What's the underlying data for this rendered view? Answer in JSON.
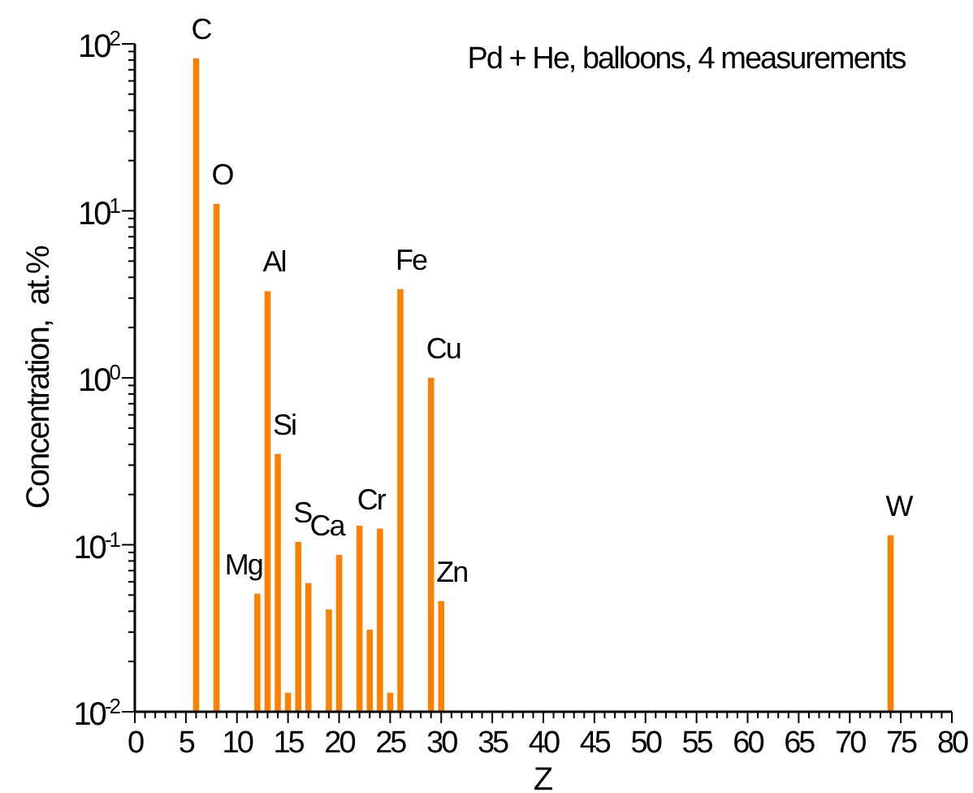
{
  "chart_data": {
    "type": "bar",
    "title": "Pd + He, balloons, 4 measurements",
    "xlabel": "Z",
    "ylabel": "Concentration,  at.%",
    "log": "y",
    "grid": false,
    "x": [
      6,
      8,
      12,
      13,
      14,
      15,
      16,
      17,
      19,
      20,
      22,
      23,
      24,
      25,
      26,
      29,
      30,
      74
    ],
    "series": [
      {
        "color": "#ff8000",
        "values": [
          82,
          11,
          0.051,
          3.3,
          0.35,
          0.013,
          0.104,
          0.059,
          0.041,
          0.087,
          0.13,
          0.031,
          0.125,
          0.013,
          3.4,
          1.0,
          0.046,
          0.114
        ]
      }
    ],
    "xlim": [
      0,
      80
    ],
    "xticks": [
      0,
      {
        "value": 1,
        "label": null
      },
      {
        "value": 2,
        "label": null
      },
      {
        "value": 3,
        "label": null
      },
      {
        "value": 4,
        "label": null
      },
      5,
      {
        "value": 6,
        "label": null
      },
      {
        "value": 7,
        "label": null
      },
      {
        "value": 8,
        "label": null
      },
      {
        "value": 9,
        "label": null
      },
      10,
      {
        "value": 11,
        "label": null
      },
      {
        "value": 12,
        "label": null
      },
      {
        "value": 13,
        "label": null
      },
      {
        "value": 14,
        "label": null
      },
      15,
      {
        "value": 16,
        "label": null
      },
      {
        "value": 17,
        "label": null
      },
      {
        "value": 18,
        "label": null
      },
      {
        "value": 19,
        "label": null
      },
      20,
      {
        "value": 21,
        "label": null
      },
      {
        "value": 22,
        "label": null
      },
      {
        "value": 23,
        "label": null
      },
      {
        "value": 24,
        "label": null
      },
      25,
      {
        "value": 26,
        "label": null
      },
      {
        "value": 27,
        "label": null
      },
      {
        "value": 28,
        "label": null
      },
      {
        "value": 29,
        "label": null
      },
      30,
      {
        "value": 31,
        "label": null
      },
      {
        "value": 32,
        "label": null
      },
      {
        "value": 33,
        "label": null
      },
      {
        "value": 34,
        "label": null
      },
      35,
      {
        "value": 36,
        "label": null
      },
      {
        "value": 37,
        "label": null
      },
      {
        "value": 38,
        "label": null
      },
      {
        "value": 39,
        "label": null
      },
      40,
      {
        "value": 41,
        "label": null
      },
      {
        "value": 42,
        "label": null
      },
      {
        "value": 43,
        "label": null
      },
      {
        "value": 44,
        "label": null
      },
      45,
      {
        "value": 46,
        "label": null
      },
      {
        "value": 47,
        "label": null
      },
      {
        "value": 48,
        "label": null
      },
      {
        "value": 49,
        "label": null
      },
      50,
      {
        "value": 51,
        "label": null
      },
      {
        "value": 52,
        "label": null
      },
      {
        "value": 53,
        "label": null
      },
      {
        "value": 54,
        "label": null
      },
      55,
      {
        "value": 56,
        "label": null
      },
      {
        "value": 57,
        "label": null
      },
      {
        "value": 58,
        "label": null
      },
      {
        "value": 59,
        "label": null
      },
      60,
      {
        "value": 61,
        "label": null
      },
      {
        "value": 62,
        "label": null
      },
      {
        "value": 63,
        "label": null
      },
      {
        "value": 64,
        "label": null
      },
      65,
      {
        "value": 66,
        "label": null
      },
      {
        "value": 67,
        "label": null
      },
      {
        "value": 68,
        "label": null
      },
      {
        "value": 69,
        "label": null
      },
      70,
      {
        "value": 71,
        "label": null
      },
      {
        "value": 72,
        "label": null
      },
      {
        "value": 73,
        "label": null
      },
      {
        "value": 74,
        "label": null
      },
      75,
      {
        "value": 76,
        "label": null
      },
      {
        "value": 77,
        "label": null
      },
      {
        "value": 78,
        "label": null
      },
      {
        "value": 79,
        "label": null
      },
      80
    ],
    "ylim": [
      0.01,
      100
    ],
    "yticks": [
      {
        "value": 0.01,
        "label": "10$^{-2}$"
      },
      {
        "value": 0.02,
        "label": null
      },
      {
        "value": 0.03,
        "label": null
      },
      {
        "value": 0.04,
        "label": null
      },
      {
        "value": 0.05,
        "label": null
      },
      {
        "value": 0.06,
        "label": null
      },
      {
        "value": 0.07,
        "label": null
      },
      {
        "value": 0.08,
        "label": null
      },
      {
        "value": 0.09,
        "label": null
      },
      {
        "value": 0.1,
        "label": "10$^{-1}$"
      },
      {
        "value": 0.2,
        "label": null
      },
      {
        "value": 0.3,
        "label": null
      },
      {
        "value": 0.4,
        "label": null
      },
      {
        "value": 0.5,
        "label": null
      },
      {
        "value": 0.6,
        "label": null
      },
      {
        "value": 0.7,
        "label": null
      },
      {
        "value": 0.8,
        "label": null
      },
      {
        "value": 0.9,
        "label": null
      },
      {
        "value": 1,
        "label": "10$^{0}$"
      },
      {
        "value": 2,
        "label": null
      },
      {
        "value": 3,
        "label": null
      },
      {
        "value": 4,
        "label": null
      },
      {
        "value": 5,
        "label": null
      },
      {
        "value": 6,
        "label": null
      },
      {
        "value": 7,
        "label": null
      },
      {
        "value": 8,
        "label": null
      },
      {
        "value": 9,
        "label": null
      },
      {
        "value": 10,
        "label": "10$^{1}$"
      },
      {
        "value": 20,
        "label": null
      },
      {
        "value": 30,
        "label": null
      },
      {
        "value": 40,
        "label": null
      },
      {
        "value": 50,
        "label": null
      },
      {
        "value": 60,
        "label": null
      },
      {
        "value": 70,
        "label": null
      },
      {
        "value": 80,
        "label": null
      },
      {
        "value": 90,
        "label": null
      },
      {
        "value": 100,
        "label": "10$^{2}$"
      }
    ],
    "annotations": [
      {
        "text": "C",
        "x": 6,
        "y": 82
      },
      {
        "text": "O",
        "x": 8,
        "y": 11
      },
      {
        "text": "Mg",
        "x": 12,
        "y": 0.051
      },
      {
        "text": "Al",
        "x": 13,
        "y": 3.3
      },
      {
        "text": "Si",
        "x": 14,
        "y": 0.35
      },
      {
        "text": "S",
        "x": 16,
        "y": 0.104
      },
      {
        "text": "Ca",
        "x": 20,
        "y": 0.087
      },
      {
        "text": "Cr",
        "x": 24,
        "y": 0.125
      },
      {
        "text": "Fe",
        "x": 26,
        "y": 3.4
      },
      {
        "text": "Cu",
        "x": 29,
        "y": 1.0
      },
      {
        "text": "Zn",
        "x": 30,
        "y": 0.046
      },
      {
        "text": "W",
        "x": 74,
        "y": 0.114
      }
    ]
  }
}
